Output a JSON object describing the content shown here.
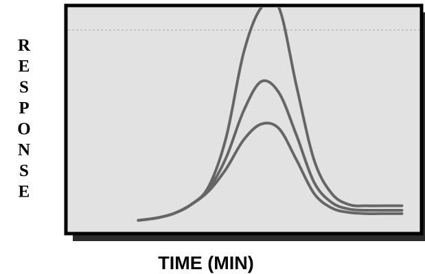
{
  "chart_data": {
    "type": "line",
    "title": "",
    "xlabel": "TIME (MIN)",
    "ylabel": "RESPONSE",
    "ylabel_orientation": "vertical-stacked-letters",
    "xlim": [
      0,
      10
    ],
    "ylim": [
      0,
      10
    ],
    "axis_ticks": "none",
    "grid": false,
    "legend": "none",
    "reference_line": {
      "y": 9.0,
      "style": "dotted",
      "color": "#bbbbbb"
    },
    "colors": {
      "plot_background": "#e2e2e2",
      "frame": "#000000",
      "shadow": "#2b2b2b",
      "series": "#666666"
    },
    "series": [
      {
        "x": [
          2.0,
          2.5,
          3.0,
          3.5,
          4.0,
          4.5,
          5.0,
          5.5,
          6.0,
          6.5,
          7.0,
          7.5,
          8.0,
          8.5,
          9.0,
          9.5
        ],
        "y": [
          0.5,
          0.6,
          0.8,
          1.2,
          2.0,
          4.2,
          8.0,
          10.0,
          10.0,
          6.5,
          3.2,
          1.7,
          1.2,
          1.15,
          1.15,
          1.15
        ]
      },
      {
        "x": [
          2.0,
          2.5,
          3.0,
          3.5,
          4.0,
          4.5,
          5.0,
          5.5,
          6.0,
          6.5,
          7.0,
          7.5,
          8.0,
          8.5,
          9.0,
          9.5
        ],
        "y": [
          0.5,
          0.6,
          0.8,
          1.2,
          1.9,
          3.3,
          5.4,
          6.7,
          6.2,
          4.3,
          2.2,
          1.3,
          1.0,
          0.95,
          0.95,
          0.95
        ]
      },
      {
        "x": [
          2.0,
          2.5,
          3.0,
          3.5,
          4.0,
          4.5,
          5.0,
          5.5,
          6.0,
          6.5,
          7.0,
          7.5,
          8.0,
          8.5,
          9.0,
          9.5
        ],
        "y": [
          0.5,
          0.6,
          0.8,
          1.2,
          1.8,
          2.8,
          4.1,
          4.8,
          4.6,
          3.2,
          1.7,
          1.05,
          0.85,
          0.8,
          0.8,
          0.8
        ]
      }
    ]
  }
}
